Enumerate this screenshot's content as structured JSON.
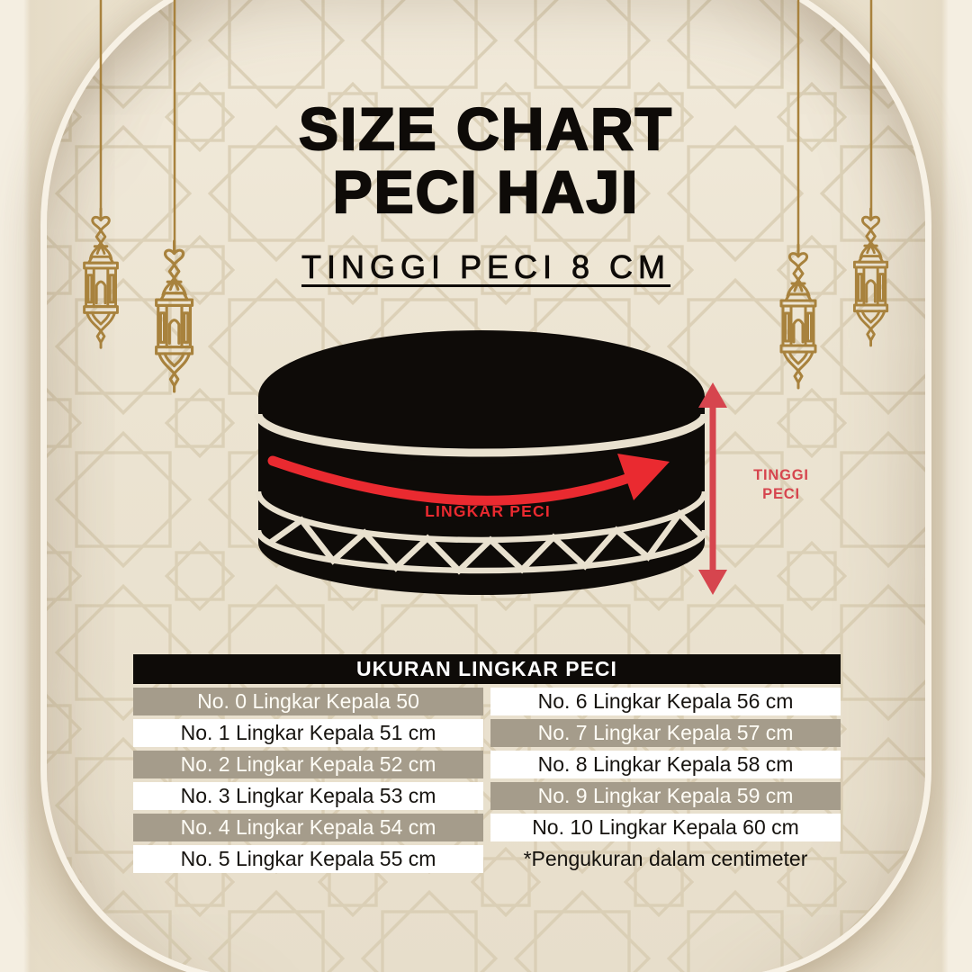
{
  "poster": {
    "title_line1": "SIZE CHART",
    "title_line2": "PECI HAJI",
    "subtitle": "TINGGI PECI 8 CM"
  },
  "diagram": {
    "circumference_label": "LINGKAR PECI",
    "height_label_line1": "TINGGI",
    "height_label_line2": "PECI"
  },
  "size_table": {
    "title": "UKURAN LINGKAR PECI",
    "rows": [
      {
        "left": "No. 0 Lingkar Kepala 50",
        "right": "No. 6 Lingkar Kepala 56 cm"
      },
      {
        "left": "No. 1 Lingkar Kepala 51 cm",
        "right": "No. 7 Lingkar Kepala 57 cm"
      },
      {
        "left": "No. 2 Lingkar Kepala 52 cm",
        "right": "No. 8 Lingkar Kepala 58 cm"
      },
      {
        "left": "No. 3 Lingkar Kepala 53 cm",
        "right": "No. 9 Lingkar Kepala 59 cm"
      },
      {
        "left": "No. 4 Lingkar Kepala 54 cm",
        "right": "No. 10 Lingkar Kepala 60 cm"
      },
      {
        "left": "No. 5 Lingkar Kepala 55 cm",
        "right": "*Pengukuran dalam centimeter"
      }
    ]
  },
  "colors": {
    "red": "#ea2a30",
    "red_dark": "#d6454e",
    "gold": "#a8823d",
    "ink": "#0e0b08",
    "taupe": "#a59c8b",
    "page_cream": "#eae1cd",
    "panel_cream": "#ece4d2",
    "pattern_line": "#d8ccb1"
  }
}
